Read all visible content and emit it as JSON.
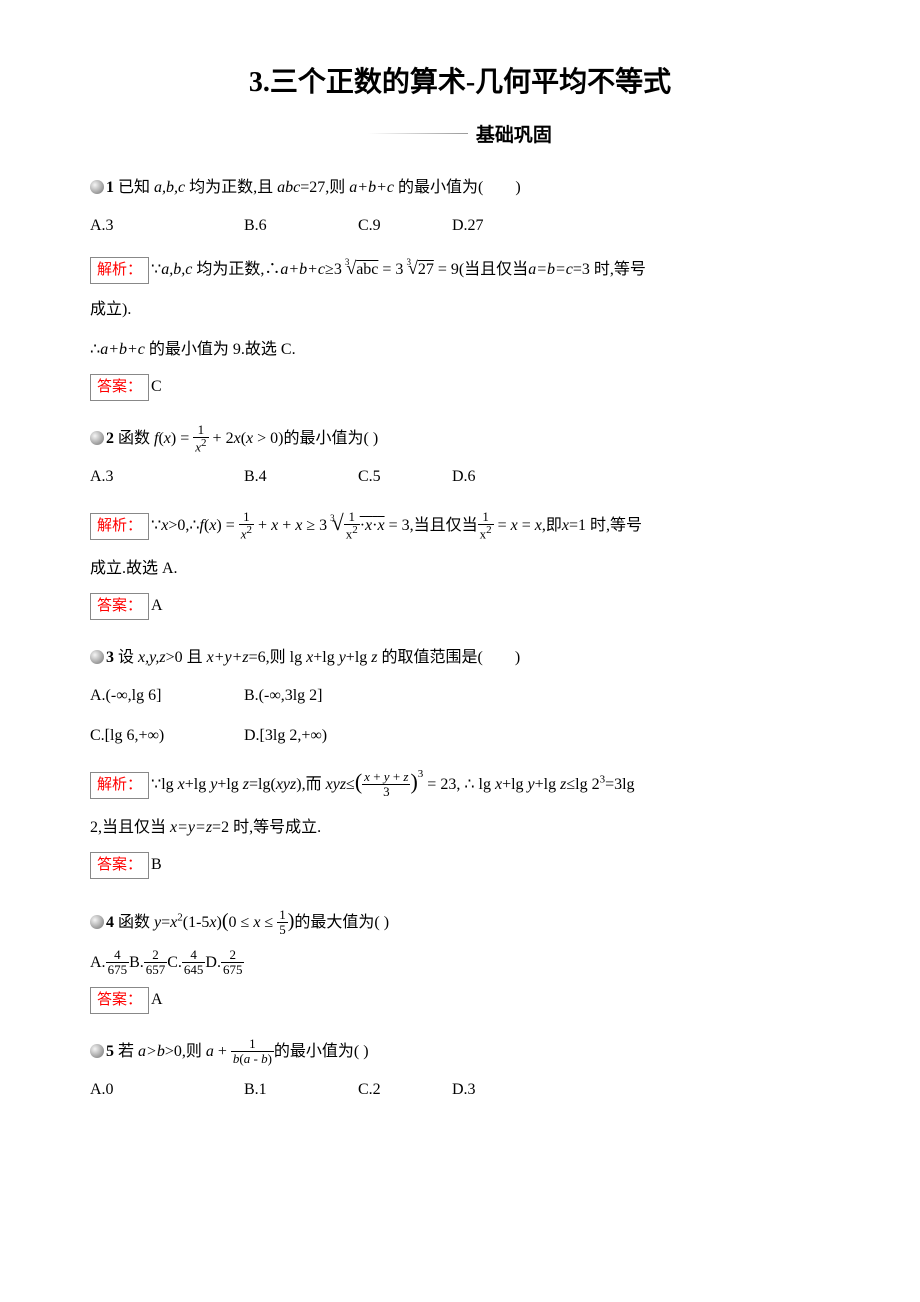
{
  "title": "3.三个正数的算术-几何平均不等式",
  "section_label": "基础巩固",
  "q1": {
    "num": "1",
    "stem_pre": " 已知 ",
    "stem_mid": " 均为正数,且 ",
    "abc": "a,b,c",
    "cond": "abc",
    "cond_eq": "=27,则 ",
    "target": "a+b+c",
    "stem_post": " 的最小值为(　　)",
    "A": "A.3",
    "B": "B.6",
    "C": "C.9",
    "D": "D.27",
    "jx_label": "解析：",
    "jx_pre": "∵",
    "jx_abc": "a,b,c",
    "jx_mid": " 均为正数,∴",
    "jx_sum": "a+b+c",
    "jx_geq": "≥3",
    "jx_r1": "abc",
    "jx_eq": " = 3",
    "jx_r2": "27",
    "jx_val": " = 9(当且仅当",
    "jx_eqcond": "a=b=c",
    "jx_eqcond2": "=3 时,等号",
    "jx_line2": "成立).",
    "jx_line3_pre": "∴",
    "jx_line3_mid": "a+b+c",
    "jx_line3_post": " 的最小值为 9.故选 C.",
    "da_label": "答案：",
    "da": "C"
  },
  "q2": {
    "num": "2",
    "stem_pre": " 函数 ",
    "fx": "f",
    "stem_post": "的最小值为(  )",
    "A": "A.3",
    "B": "B.4",
    "C": "C.5",
    "D": "D.6",
    "jx_label": "解析：",
    "jx_body": "成立.故选 A.",
    "da_label": "答案：",
    "da": "A"
  },
  "q3": {
    "num": "3",
    "stem_pre": " 设 ",
    "xyz": "x,y,z",
    "stem_mid": ">0 且 ",
    "sum": "x+y+z",
    "stem_mid2": "=6,则 lg ",
    "lgx": "x",
    "plus": "+lg ",
    "lgy": "y",
    "lgz": "z",
    "stem_post": " 的取值范围是(　　)",
    "A": "A.(-∞,lg 6]",
    "B": "B.(-∞,3lg 2]",
    "C": "C.[lg 6,+∞)",
    "D": "D.[3lg 2,+∞)",
    "jx_label": "解析：",
    "jx_l2": "2,当且仅当 ",
    "jx_cond": "x=y=z",
    "jx_l2b": "=2 时,等号成立.",
    "da_label": "答案：",
    "da": "B"
  },
  "q4": {
    "num": "4",
    "stem_pre": " 函数 ",
    "y": "y",
    "eq": "=",
    "x2": "x",
    "paren": "(1-5",
    "x": "x",
    "close": ")",
    "stem_post": "的最大值为(  )",
    "A_n": "4",
    "A_d": "675",
    "B_n": "2",
    "B_d": "657",
    "C_n": "4",
    "C_d": "645",
    "D_n": "2",
    "D_d": "675",
    "da_label": "答案：",
    "da": "A"
  },
  "q5": {
    "num": "5",
    "stem_pre": " 若 ",
    "cond": "a>b",
    "stem_mid": ">0,则 ",
    "a": "a",
    "stem_post": "的最小值为(  )",
    "A": "A.0",
    "B": "B.1",
    "C": "C.2",
    "D": "D.3"
  }
}
